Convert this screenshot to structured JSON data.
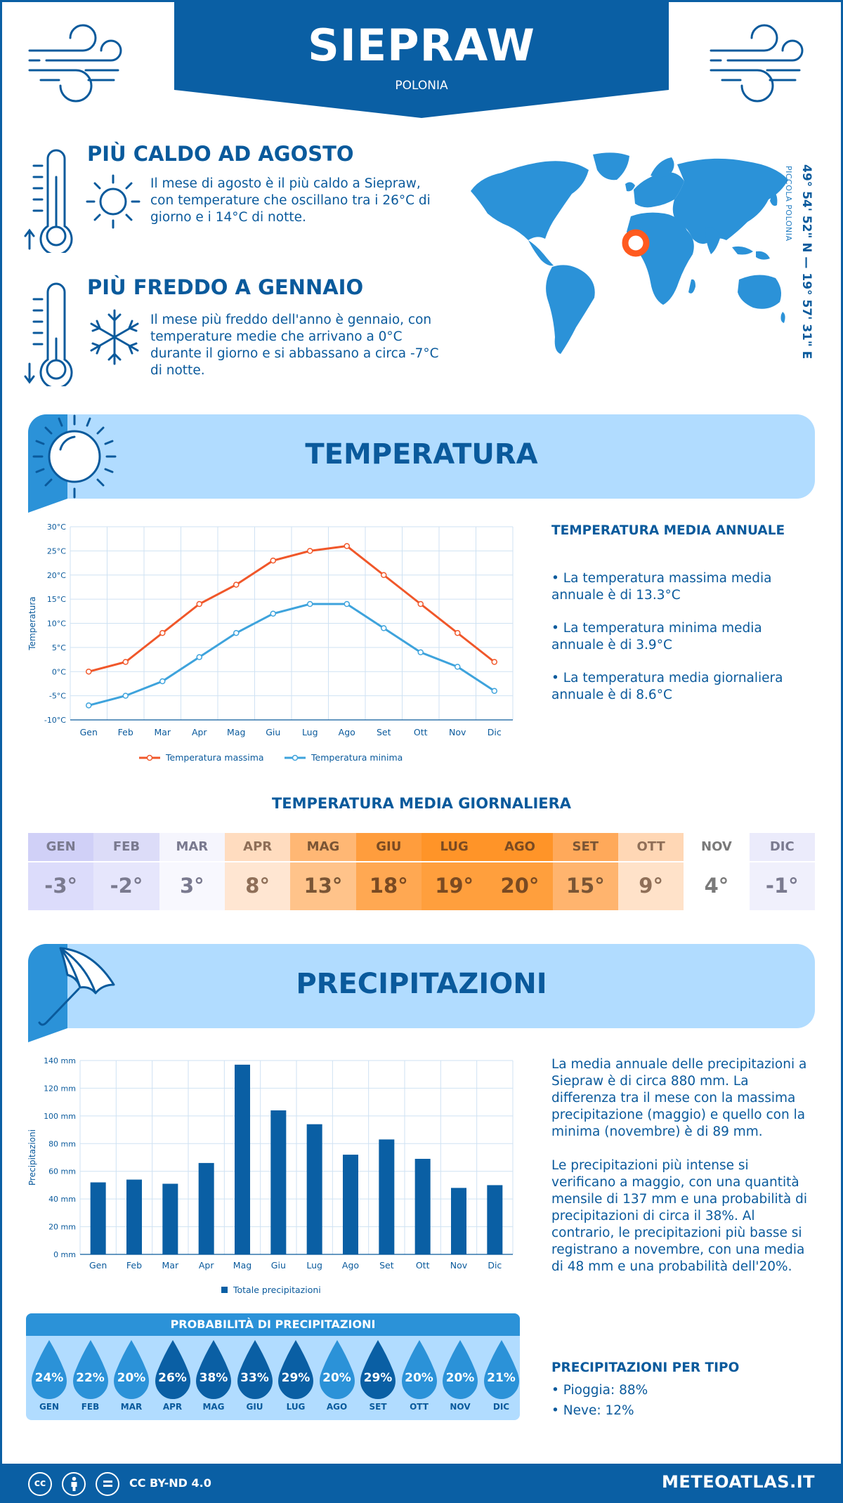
{
  "header": {
    "city": "SIEPRAW",
    "country": "POLONIA"
  },
  "location": {
    "coordinates": "49° 54' 52\" N — 19° 57' 31\" E",
    "region": "PICCOLA POLONIA"
  },
  "facts": [
    {
      "title": "PIÙ CALDO AD AGOSTO",
      "text": "Il mese di agosto è il più caldo a Siepraw, con temperature che oscillano tra i 26°C di giorno e i 14°C di notte."
    },
    {
      "title": "PIÙ FREDDO A GENNAIO",
      "text": "Il mese più freddo dell'anno è gennaio, con temperature medie che arrivano a 0°C durante il giorno e si abbassano a circa -7°C di notte."
    }
  ],
  "sections": {
    "temperature": "TEMPERATURA",
    "precipitation": "PRECIPITAZIONI"
  },
  "temp_side": {
    "heading": "TEMPERATURA MEDIA ANNUALE",
    "items": [
      "• La temperatura massima media annuale è di 13.3°C",
      "• La temperatura minima media annuale è di 3.9°C",
      "• La temperatura media giornaliera annuale è di 8.6°C"
    ]
  },
  "daily": {
    "title": "TEMPERATURA MEDIA GIORNALIERA",
    "months": [
      "GEN",
      "FEB",
      "MAR",
      "APR",
      "MAG",
      "GIU",
      "LUG",
      "AGO",
      "SET",
      "OTT",
      "NOV",
      "DIC"
    ],
    "values": [
      "-3°",
      "-2°",
      "3°",
      "8°",
      "13°",
      "18°",
      "19°",
      "20°",
      "15°",
      "9°",
      "4°",
      "-1°"
    ],
    "head_colors": [
      "#d0d0f7",
      "#dcdcf8",
      "#f5f5fd",
      "#ffdcbf",
      "#ffb774",
      "#ff9d3d",
      "#ff9428",
      "#ff9428",
      "#ffa95a",
      "#ffd7b5",
      "#ffffff",
      "#ebebfb"
    ],
    "val_colors": [
      "#dcdcfb",
      "#e6e6fc",
      "#f8f8fe",
      "#ffe6d2",
      "#ffc38a",
      "#ffa852",
      "#ff9f3d",
      "#ff9f3d",
      "#ffb46e",
      "#ffe2c9",
      "#ffffff",
      "#f0f0fc"
    ],
    "text_colors": [
      "#7a7a8f",
      "#7a7a8f",
      "#7a7a8f",
      "#8f6f58",
      "#7a5535",
      "#7a4a22",
      "#7a4a22",
      "#7a4a22",
      "#7a5535",
      "#8f6f58",
      "#7a7a7a",
      "#7a7a8f"
    ]
  },
  "precip_side": {
    "p1": "La media annuale delle precipitazioni a Siepraw è di circa 880 mm. La differenza tra il mese con la massima precipitazione (maggio) e quello con la minima (novembre) è di 89 mm.",
    "p2": "Le precipitazioni più intense si verificano a maggio, con una quantità mensile di 137 mm e una probabilità di precipitazioni di circa il 38%. Al contrario, le precipitazioni più basse si registrano a novembre, con una media di 48 mm e una probabilità dell'20%."
  },
  "probability": {
    "title": "PROBABILITÀ DI PRECIPITAZIONI",
    "months": [
      "GEN",
      "FEB",
      "MAR",
      "APR",
      "MAG",
      "GIU",
      "LUG",
      "AGO",
      "SET",
      "OTT",
      "NOV",
      "DIC"
    ],
    "values": [
      "24%",
      "22%",
      "20%",
      "26%",
      "38%",
      "33%",
      "29%",
      "20%",
      "29%",
      "20%",
      "20%",
      "21%"
    ],
    "colors": [
      "#2b92d8",
      "#2b92d8",
      "#2b92d8",
      "#0a5fa4",
      "#0a5fa4",
      "#0a5fa4",
      "#0a5fa4",
      "#2b92d8",
      "#0a5fa4",
      "#2b92d8",
      "#2b92d8",
      "#2b92d8"
    ]
  },
  "precip_type": {
    "heading": "PRECIPITAZIONI PER TIPO",
    "items": [
      "• Pioggia: 88%",
      "• Neve: 12%"
    ]
  },
  "footer": {
    "license": "CC BY-ND 4.0",
    "site": "METEOATLAS.IT"
  },
  "chart_data": [
    {
      "type": "line",
      "categories": [
        "Gen",
        "Feb",
        "Mar",
        "Apr",
        "Mag",
        "Giu",
        "Lug",
        "Ago",
        "Set",
        "Ott",
        "Nov",
        "Dic"
      ],
      "series": [
        {
          "name": "Temperatura massima",
          "values": [
            0,
            2,
            8,
            14,
            18,
            23,
            25,
            26,
            20,
            14,
            8,
            2
          ],
          "color": "#f0572a"
        },
        {
          "name": "Temperatura minima",
          "values": [
            -7,
            -5,
            -2,
            3,
            8,
            12,
            14,
            14,
            9,
            4,
            1,
            -4
          ],
          "color": "#3ea3dc"
        }
      ],
      "yticks": [
        "-10°C",
        "-5°C",
        "0°C",
        "5°C",
        "10°C",
        "15°C",
        "20°C",
        "25°C",
        "30°C"
      ],
      "ylabel": "Temperatura",
      "ylim": [
        -10,
        30
      ],
      "grid": true,
      "legend": "bottom"
    },
    {
      "type": "bar",
      "categories": [
        "Gen",
        "Feb",
        "Mar",
        "Apr",
        "Mag",
        "Giu",
        "Lug",
        "Ago",
        "Set",
        "Ott",
        "Nov",
        "Dic"
      ],
      "series": [
        {
          "name": "Totale precipitazioni",
          "values": [
            52,
            54,
            51,
            66,
            137,
            104,
            94,
            72,
            83,
            69,
            48,
            50
          ],
          "color": "#0a5fa4"
        }
      ],
      "yticks": [
        "0 mm",
        "20 mm",
        "40 mm",
        "60 mm",
        "80 mm",
        "100 mm",
        "120 mm",
        "140 mm"
      ],
      "ylabel": "Precipitazioni",
      "ylim": [
        0,
        140
      ],
      "grid": true,
      "legend": "bottom"
    }
  ]
}
